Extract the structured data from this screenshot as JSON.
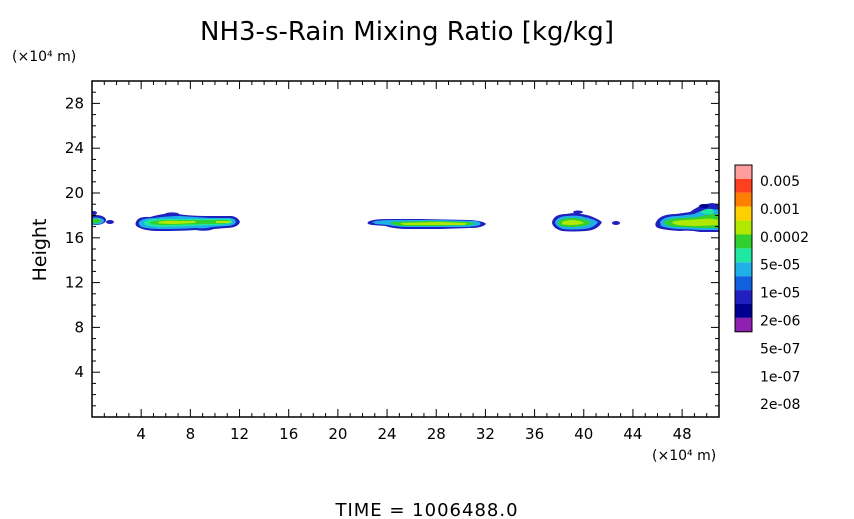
{
  "chart_data": {
    "type": "heatmap",
    "title": "NH3-s-Rain Mixing Ratio [kg/kg]",
    "ylabel": "Height",
    "x_unit": "(×10⁴ m)",
    "y_unit": "(×10⁴ m)",
    "xlim": [
      0,
      51
    ],
    "ylim": [
      0,
      30
    ],
    "x_ticks": [
      4,
      8,
      12,
      16,
      20,
      24,
      28,
      32,
      36,
      40,
      44,
      48
    ],
    "x_tick_labels": [
      "4",
      "8",
      "12",
      "16",
      "20",
      "24",
      "28",
      "32",
      "36",
      "40",
      "44",
      "48"
    ],
    "y_ticks": [
      4,
      8,
      12,
      16,
      20,
      24,
      28
    ],
    "y_tick_labels": [
      "4",
      "8",
      "12",
      "16",
      "20",
      "24",
      "28"
    ],
    "colorbar": {
      "labels": [
        "0.005",
        "0.001",
        "0.0002",
        "5e-05",
        "1e-05",
        "2e-06",
        "5e-07",
        "1e-07",
        "2e-08"
      ],
      "colors": [
        "#ff9c9c",
        "#ff4020",
        "#ff8000",
        "#ffd000",
        "#b0e800",
        "#30d030",
        "#20e8a0",
        "#20b0e8",
        "#1060e0",
        "#2020c0",
        "#000090",
        "#9020b0"
      ]
    },
    "regions": [
      {
        "x_range": [
          0,
          1.5
        ],
        "y_range": [
          16.6,
          18.2
        ],
        "max_level": "2e-06"
      },
      {
        "x_range": [
          3.5,
          12.2
        ],
        "y_range": [
          16.5,
          18.3
        ],
        "max_level": "5e-05"
      },
      {
        "x_range": [
          22.5,
          32
        ],
        "y_range": [
          16.6,
          17.8
        ],
        "max_level": "5e-05"
      },
      {
        "x_range": [
          37,
          42.5
        ],
        "y_range": [
          16.6,
          18.4
        ],
        "max_level": "5e-05"
      },
      {
        "x_range": [
          46,
          51
        ],
        "y_range": [
          16.6,
          19.2
        ],
        "max_level": "5e-05"
      }
    ]
  },
  "footer": {
    "time_text": "TIME  =  1006488.0"
  }
}
